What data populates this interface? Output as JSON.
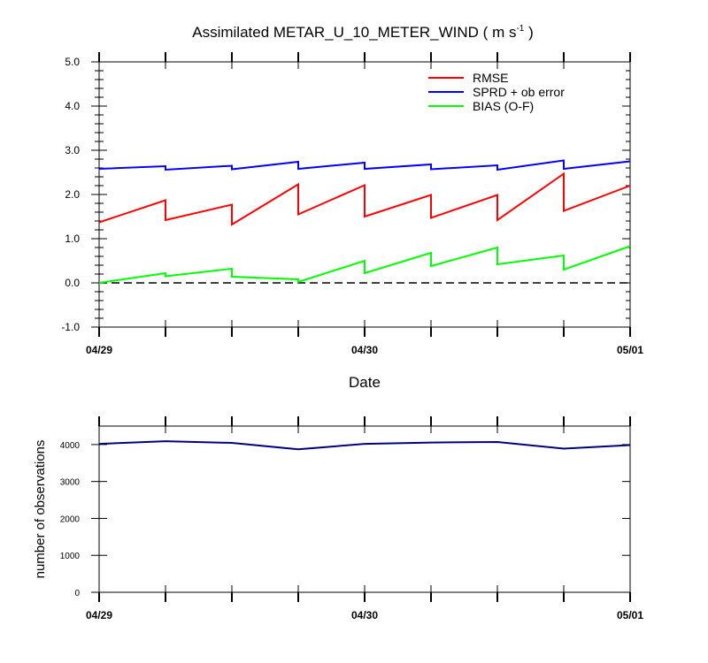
{
  "chart_data": [
    {
      "type": "line",
      "title": "Assimilated METAR_U_10_METER_WIND ( m s",
      "title_sup": "-1",
      "title_end": " )",
      "xlabel": "Date",
      "ylabel": "",
      "ylim": [
        -1.0,
        5.0
      ],
      "y_ticks": [
        "-1.0",
        "0.0",
        "1.0",
        "2.0",
        "3.0",
        "4.0",
        "5.0"
      ],
      "x_range": [
        0,
        8
      ],
      "x_tick_labels": [
        {
          "x": 0,
          "label": "04/29"
        },
        {
          "x": 4,
          "label": "04/30"
        },
        {
          "x": 8,
          "label": "05/01"
        }
      ],
      "zero_line": "dashed",
      "legend_position": "top-right",
      "series": [
        {
          "name": "RMSE",
          "color": "#ff0000",
          "x": [
            0,
            1,
            1,
            2,
            2,
            3,
            3,
            4,
            4,
            5,
            5,
            6,
            6,
            7,
            7,
            8
          ],
          "y": [
            1.37,
            1.87,
            1.42,
            1.77,
            1.32,
            2.23,
            1.55,
            2.21,
            1.5,
            1.99,
            1.47,
            1.99,
            1.42,
            2.47,
            1.63,
            2.2
          ]
        },
        {
          "name": "SPRD + ob error",
          "color": "#0000ff",
          "x": [
            0,
            1,
            1,
            2,
            2,
            3,
            3,
            4,
            4,
            5,
            5,
            6,
            6,
            7,
            7,
            8
          ],
          "y": [
            2.58,
            2.64,
            2.56,
            2.65,
            2.57,
            2.74,
            2.58,
            2.72,
            2.58,
            2.68,
            2.57,
            2.66,
            2.56,
            2.77,
            2.58,
            2.75
          ]
        },
        {
          "name": "BIAS (O-F)",
          "color": "#00ff00",
          "x": [
            0,
            1,
            1,
            2,
            2,
            3,
            3,
            4,
            4,
            5,
            5,
            6,
            6,
            7,
            7,
            8
          ],
          "y": [
            0.0,
            0.22,
            0.15,
            0.32,
            0.14,
            0.08,
            0.02,
            0.5,
            0.22,
            0.68,
            0.38,
            0.8,
            0.42,
            0.62,
            0.3,
            0.83
          ]
        }
      ]
    },
    {
      "type": "line",
      "title": "",
      "xlabel": "",
      "ylabel": "number of observations",
      "ylim": [
        0,
        4500
      ],
      "y_ticks": [
        "0",
        "1000",
        "2000",
        "3000",
        "4000"
      ],
      "x_range": [
        0,
        8
      ],
      "x_tick_labels": [
        {
          "x": 0,
          "label": "04/29"
        },
        {
          "x": 4,
          "label": "04/30"
        },
        {
          "x": 8,
          "label": "05/01"
        }
      ],
      "series": [
        {
          "color": "#000080",
          "x": [
            0,
            1,
            2,
            3,
            4,
            5,
            6,
            7,
            8
          ],
          "y": [
            4020,
            4090,
            4045,
            3870,
            4020,
            4055,
            4070,
            3890,
            3985
          ]
        }
      ]
    }
  ]
}
